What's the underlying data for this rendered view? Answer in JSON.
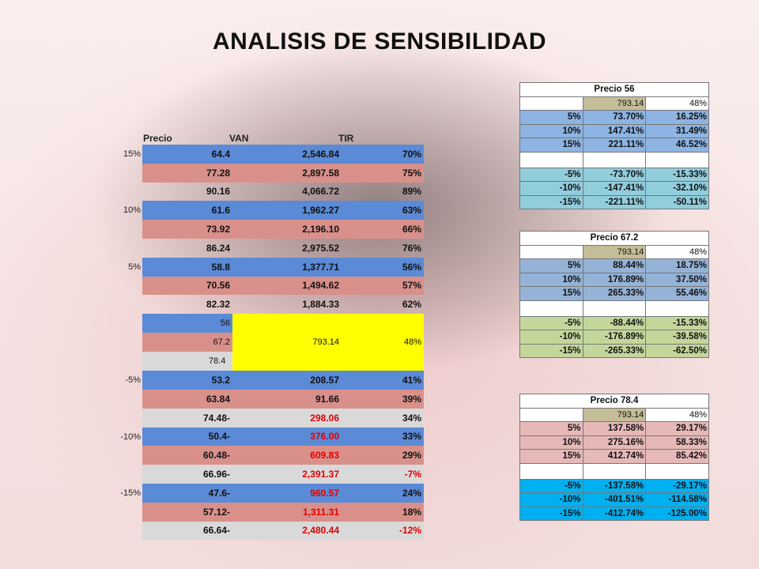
{
  "title": "ANALISIS DE SENSIBILIDAD",
  "main": {
    "headers": [
      "Precio",
      "VAN",
      "TIR"
    ],
    "rows": [
      {
        "label": "15%",
        "precio": "64.4",
        "dash": "",
        "van": "2,546.84",
        "tir": "70%",
        "color": "blue",
        "neg": false
      },
      {
        "label": "",
        "precio": "77.28",
        "dash": "",
        "van": "2,897.58",
        "tir": "75%",
        "color": "pink",
        "neg": false
      },
      {
        "label": "",
        "precio": "90.16",
        "dash": "",
        "van": "4,066.72",
        "tir": "89%",
        "color": "none",
        "neg": false
      },
      {
        "label": "10%",
        "precio": "61.6",
        "dash": "",
        "van": "1,962.27",
        "tir": "63%",
        "color": "blue",
        "neg": false
      },
      {
        "label": "",
        "precio": "73.92",
        "dash": "",
        "van": "2,196.10",
        "tir": "66%",
        "color": "pink",
        "neg": false
      },
      {
        "label": "",
        "precio": "86.24",
        "dash": "",
        "van": "2,975.52",
        "tir": "76%",
        "color": "none",
        "neg": false
      },
      {
        "label": "5%",
        "precio": "58.8",
        "dash": "",
        "van": "1,377.71",
        "tir": "56%",
        "color": "blue",
        "neg": false
      },
      {
        "label": "",
        "precio": "70.56",
        "dash": "",
        "van": "1,494.62",
        "tir": "57%",
        "color": "pink",
        "neg": false
      },
      {
        "label": "",
        "precio": "82.32",
        "dash": "",
        "van": "1,884.33",
        "tir": "62%",
        "color": "none",
        "neg": false
      }
    ],
    "base": {
      "precios": [
        "56",
        "67.2",
        "78.4"
      ],
      "van": "793.14",
      "tir": "48%"
    },
    "rows2": [
      {
        "label": "-5%",
        "precio": "53.2",
        "dash": "",
        "van": "208.57",
        "tir": "41%",
        "color": "blue",
        "neg": false
      },
      {
        "label": "",
        "precio": "63.84",
        "dash": "",
        "van": "91.66",
        "tir": "39%",
        "color": "pink",
        "neg": false
      },
      {
        "label": "",
        "precio": "74.48",
        "dash": "-",
        "van": "298.06",
        "tir": "34%",
        "color": "grey",
        "neg": true
      },
      {
        "label": "-10%",
        "precio": "50.4",
        "dash": "-",
        "van": "376.00",
        "tir": "33%",
        "color": "blue",
        "neg": true
      },
      {
        "label": "",
        "precio": "60.48",
        "dash": "-",
        "van": "609.83",
        "tir": "29%",
        "color": "pink",
        "neg": true
      },
      {
        "label": "",
        "precio": "66.96",
        "dash": "-",
        "van": "2,391.37",
        "tir": "-7%",
        "color": "grey",
        "neg": true
      },
      {
        "label": "-15%",
        "precio": "47.6",
        "dash": "-",
        "van": "960.57",
        "tir": "24%",
        "color": "blue",
        "neg": true
      },
      {
        "label": "",
        "precio": "57.12",
        "dash": "-",
        "van": "1,311.31",
        "tir": "18%",
        "color": "pink",
        "neg": true
      },
      {
        "label": "",
        "precio": "66.64",
        "dash": "-",
        "van": "2,480.44",
        "tir": "-12%",
        "color": "grey",
        "neg": true
      }
    ]
  },
  "side_tables": [
    {
      "title": "Precio 56",
      "base_van": "793.14",
      "base_tir": "48%",
      "color": "#8db4e2",
      "pos": [
        [
          "5%",
          "73.70%",
          "16.25%"
        ],
        [
          "10%",
          "147.41%",
          "31.49%"
        ],
        [
          "15%",
          "221.11%",
          "46.52%"
        ]
      ],
      "neg_color": "#92cddc",
      "neg": [
        [
          "-5%",
          "-73.70%",
          "-15.33%"
        ],
        [
          "-10%",
          "-147.41%",
          "-32.10%"
        ],
        [
          "-15%",
          "-221.11%",
          "-50.11%"
        ]
      ]
    },
    {
      "title": "Precio 67.2",
      "base_van": "793.14",
      "base_tir": "48%",
      "color": "#95b3d7",
      "pos": [
        [
          "5%",
          "88.44%",
          "18.75%"
        ],
        [
          "10%",
          "176.89%",
          "37.50%"
        ],
        [
          "15%",
          "265.33%",
          "55.46%"
        ]
      ],
      "neg_color": "#c4d79b",
      "neg": [
        [
          "-5%",
          "-88.44%",
          "-15.33%"
        ],
        [
          "-10%",
          "-176.89%",
          "-39.58%"
        ],
        [
          "-15%",
          "-265.33%",
          "-62.50%"
        ]
      ]
    },
    {
      "title": "Precio 78.4",
      "base_van": "793.14",
      "base_tir": "48%",
      "color": "#e6b9b8",
      "pos": [
        [
          "5%",
          "137.58%",
          "29.17%"
        ],
        [
          "10%",
          "275.16%",
          "58.33%"
        ],
        [
          "15%",
          "412.74%",
          "85.42%"
        ]
      ],
      "neg_color": "#00b0f0",
      "neg": [
        [
          "-5%",
          "-137.58%",
          "-29.17%"
        ],
        [
          "-10%",
          "-401.51%",
          "-114.58%"
        ],
        [
          "-15%",
          "-412.74%",
          "-125.00%"
        ]
      ]
    }
  ]
}
